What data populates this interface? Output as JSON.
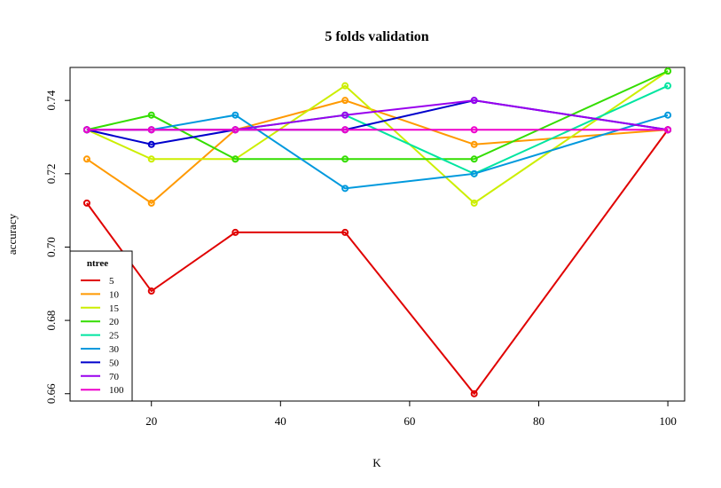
{
  "chart_data": {
    "type": "line",
    "title": "5 folds validation",
    "xlabel": "K",
    "ylabel": "accuracy",
    "xlim": [
      10,
      100
    ],
    "ylim": [
      0.658,
      0.749
    ],
    "x": [
      10,
      20,
      33,
      50,
      70,
      100
    ],
    "xticks": [
      20,
      40,
      60,
      80,
      100
    ],
    "xtick_labels": [
      "20",
      "40",
      "60",
      "80",
      "100"
    ],
    "yticks": [
      0.66,
      0.68,
      0.7,
      0.72,
      0.74
    ],
    "ytick_labels": [
      "0.66",
      "0.68",
      "0.70",
      "0.72",
      "0.74"
    ],
    "grid": false,
    "legend": {
      "title": "ntree",
      "placement": "bottom-left"
    },
    "series": [
      {
        "name": "5",
        "color": "#e00000",
        "values": [
          0.712,
          0.688,
          0.704,
          0.704,
          0.66,
          0.732
        ]
      },
      {
        "name": "10",
        "color": "#ff9900",
        "values": [
          0.724,
          0.712,
          0.732,
          0.74,
          0.728,
          0.732
        ]
      },
      {
        "name": "15",
        "color": "#ccee00",
        "values": [
          0.732,
          0.724,
          0.724,
          0.744,
          0.712,
          0.748
        ]
      },
      {
        "name": "20",
        "color": "#33dd00",
        "values": [
          0.732,
          0.736,
          0.724,
          0.724,
          0.724,
          0.748
        ]
      },
      {
        "name": "25",
        "color": "#00e5a0",
        "values": [
          0.732,
          0.732,
          0.732,
          0.736,
          0.72,
          0.744
        ]
      },
      {
        "name": "30",
        "color": "#0099dd",
        "values": [
          0.732,
          0.732,
          0.736,
          0.716,
          0.72,
          0.736
        ]
      },
      {
        "name": "50",
        "color": "#0000cc",
        "values": [
          0.732,
          0.728,
          0.732,
          0.732,
          0.74,
          0.732
        ]
      },
      {
        "name": "70",
        "color": "#9900ee",
        "values": [
          0.732,
          0.732,
          0.732,
          0.736,
          0.74,
          0.732
        ]
      },
      {
        "name": "100",
        "color": "#ee00cc",
        "values": [
          0.732,
          0.732,
          0.732,
          0.732,
          0.732,
          0.732
        ]
      }
    ]
  }
}
